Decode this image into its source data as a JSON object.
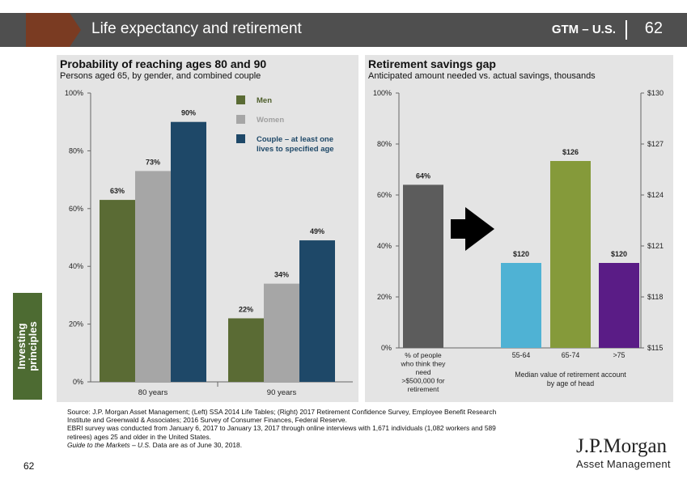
{
  "header": {
    "title": "Life expectancy and retirement",
    "gtm": "GTM – U.S.",
    "page": "62"
  },
  "side_tab": {
    "label": "Investing\nprinciples"
  },
  "colors": {
    "men": "#5a6b34",
    "women": "#a6a6a6",
    "couple": "#1e4868",
    "pct_people": "#5c5c5c",
    "age_55_64": "#4fb2d4",
    "age_65_74": "#859a3a",
    "age_75_plus": "#5a1c86"
  },
  "chart_data": [
    {
      "type": "bar",
      "title": "Probability of reaching ages 80 and 90",
      "subtitle": "Persons aged 65, by gender, and combined couple",
      "categories": [
        "80 years",
        "90 years"
      ],
      "series": [
        {
          "name": "Men",
          "values": [
            63,
            22
          ],
          "labels": [
            "63%",
            "22%"
          ]
        },
        {
          "name": "Women",
          "values": [
            73,
            34
          ],
          "labels": [
            "73%",
            "34%"
          ]
        },
        {
          "name": "Couple – at least one lives to specified age",
          "legend_lines": [
            "Couple – at least one",
            "lives to specified age"
          ],
          "values": [
            90,
            49
          ],
          "labels": [
            "90%",
            "49%"
          ]
        }
      ],
      "ylim": [
        0,
        100
      ],
      "yticks": [
        0,
        20,
        40,
        60,
        80,
        100
      ],
      "ytick_labels": [
        "0%",
        "20%",
        "40%",
        "60%",
        "80%",
        "100%"
      ],
      "legend": "top-right"
    },
    {
      "type": "bar",
      "title": "Retirement savings gap",
      "subtitle": "Anticipated amount needed vs. actual savings, thousands",
      "left_axis": {
        "ylim": [
          0,
          100
        ],
        "ticks": [
          "0%",
          "20%",
          "40%",
          "60%",
          "80%",
          "100%"
        ]
      },
      "right_axis": {
        "ylim": [
          115,
          130
        ],
        "ticks": [
          "$115",
          "$118",
          "$121",
          "$124",
          "$127",
          "$130"
        ]
      },
      "left_bar": {
        "category_lines": [
          "% of people",
          "who think they",
          "need",
          ">$500,000 for",
          "retirement"
        ],
        "value": 64,
        "label": "64%"
      },
      "right_bars": [
        {
          "category": "55-64",
          "value": 120,
          "label": "$120"
        },
        {
          "category": "65-74",
          "value": 126,
          "label": "$126"
        },
        {
          "category": ">75",
          "value": 120,
          "label": "$120"
        }
      ],
      "right_group_label_lines": [
        "Median value of retirement account",
        "by age of head"
      ]
    }
  ],
  "source": {
    "lines": [
      "Source: J.P. Morgan Asset Management; (Left) SSA 2014 Life Tables; (Right) 2017 Retirement Confidence Survey, Employee Benefit Research",
      "Institute and Greenwald & Associates; 2016 Survey of Consumer Finances, Federal Reserve.",
      "EBRI survey was conducted from January 6, 2017 to January 13, 2017 through online interviews with 1,671 individuals (1,082 workers and 589",
      "retirees) ages 25 and older in the United States."
    ],
    "italic": "Guide to the Markets – U.S.",
    "date_note": " Data are as of June 30, 2018."
  },
  "footer": {
    "page": "62",
    "logo": "J.P.Morgan",
    "logo_sub": "Asset Management"
  }
}
